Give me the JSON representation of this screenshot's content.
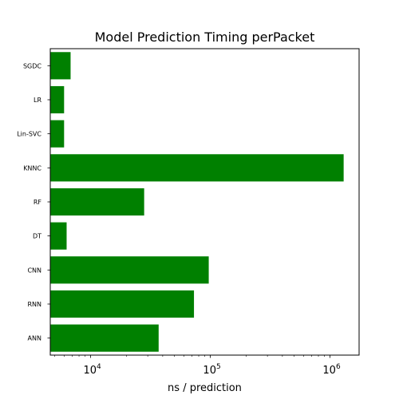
{
  "chart_data": {
    "type": "bar",
    "orientation": "horizontal",
    "title": "Model Prediction Timing perPacket",
    "xlabel": "ns / prediction",
    "ylabel": "",
    "xscale": "log",
    "xlim": [
      4600,
      1750000
    ],
    "grid": false,
    "bar_color": "#008000",
    "categories": [
      "SGDC",
      "LR",
      "Lin-SVC",
      "KNNC",
      "RF",
      "DT",
      "CNN",
      "RNN",
      "ANN"
    ],
    "values": [
      6800,
      6000,
      6000,
      1300000,
      28000,
      6300,
      97000,
      73000,
      37000
    ],
    "x_ticks": [
      {
        "base": "10",
        "exp": "4",
        "value": 10000
      },
      {
        "base": "10",
        "exp": "5",
        "value": 100000
      },
      {
        "base": "10",
        "exp": "6",
        "value": 1000000
      }
    ]
  }
}
